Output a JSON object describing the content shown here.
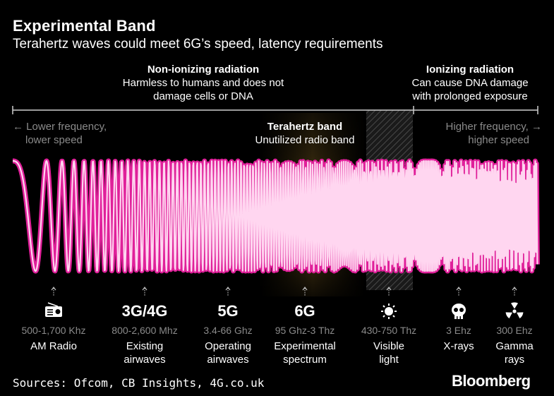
{
  "title": "Experimental Band",
  "subtitle": "Terahertz waves could meet 6G’s speed, latency requirements",
  "nonionizing": {
    "heading": "Non-ionizing radiation",
    "line1": "Harmless to humans and does not",
    "line2": "damage cells or DNA"
  },
  "ionizing": {
    "heading": "Ionizing radiation",
    "line1": "Can cause DNA damage",
    "line2": "with prolonged exposure"
  },
  "lower": {
    "line1": "Lower frequency,",
    "line2": "lower speed",
    "arrow": "←"
  },
  "higher": {
    "line1": "Higher frequency,",
    "line2": "higher speed",
    "arrow": "→"
  },
  "terahertz": {
    "heading": "Terahertz band",
    "line1": "Unutilized radio band"
  },
  "watermark": "Bloomberg",
  "items": [
    {
      "icon": "radio-icon",
      "label_icon": "",
      "freq": "500-1,700 Khz",
      "name1": "AM Radio",
      "name2": ""
    },
    {
      "icon": "",
      "label_icon": "3G/4G",
      "freq": "800-2,600 Mhz",
      "name1": "Existing",
      "name2": "airwaves"
    },
    {
      "icon": "",
      "label_icon": "5G",
      "freq": "3.4-66 Ghz",
      "name1": "Operating",
      "name2": "airwaves"
    },
    {
      "icon": "",
      "label_icon": "6G",
      "freq": "95 Ghz-3 Thz",
      "name1": "Experimental",
      "name2": "spectrum"
    },
    {
      "icon": "sun-icon",
      "label_icon": "",
      "freq": "430-750 Thz",
      "name1": "Visible",
      "name2": "light"
    },
    {
      "icon": "skull-icon",
      "label_icon": "",
      "freq": "3 Ehz",
      "name1": "X-rays",
      "name2": ""
    },
    {
      "icon": "radiation-icon",
      "label_icon": "",
      "freq": "300 Ehz",
      "name1": "Gamma",
      "name2": "rays"
    }
  ],
  "sources": "Sources: Ofcom, CB Insights, 4G.co.uk",
  "brand": "Bloomberg",
  "colors": {
    "wave": "#e0209a",
    "wave_core": "#ffd6f0",
    "muted": "#8a8a8a",
    "band_glow": "#3a2c10"
  }
}
